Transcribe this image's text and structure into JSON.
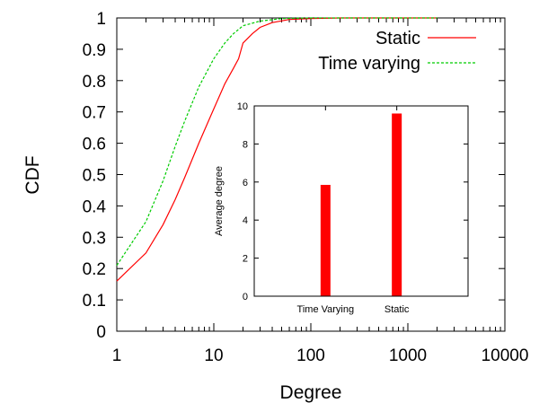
{
  "chart_data": [
    {
      "type": "line",
      "xlabel": "Degree",
      "ylabel": "CDF",
      "xscale": "log",
      "xlim": [
        1,
        10000
      ],
      "ylim": [
        0,
        1
      ],
      "xticks": [
        "1",
        "10",
        "100",
        "1000",
        "10000"
      ],
      "yticks": [
        "0",
        "0.1",
        "0.2",
        "0.3",
        "0.4",
        "0.5",
        "0.6",
        "0.7",
        "0.8",
        "0.9",
        "1"
      ],
      "legend_position": "top-right",
      "series": [
        {
          "name": "Static",
          "color": "#ff0000",
          "dash": "solid",
          "x": [
            1,
            2,
            3,
            4,
            5,
            7,
            10,
            13,
            16,
            18,
            20,
            25,
            30,
            40,
            60,
            100,
            200,
            1000,
            2000
          ],
          "y": [
            0.16,
            0.25,
            0.34,
            0.42,
            0.49,
            0.6,
            0.71,
            0.79,
            0.84,
            0.87,
            0.92,
            0.95,
            0.97,
            0.985,
            0.995,
            0.998,
            1.0,
            1.0,
            1.0
          ]
        },
        {
          "name": "Time varying",
          "color": "#00cc00",
          "dash": "dashed",
          "x": [
            1,
            2,
            3,
            4,
            5,
            7,
            10,
            13,
            16,
            20,
            30,
            50,
            100,
            200,
            1000,
            2000
          ],
          "y": [
            0.21,
            0.35,
            0.48,
            0.59,
            0.67,
            0.78,
            0.87,
            0.92,
            0.95,
            0.975,
            0.99,
            0.998,
            1.0,
            1.0,
            1.0,
            1.0
          ]
        }
      ]
    },
    {
      "type": "bar",
      "ylabel": "Average degree",
      "ylim": [
        0,
        10
      ],
      "yticks": [
        "0",
        "2",
        "4",
        "6",
        "8",
        "10"
      ],
      "categories": [
        "Time Varying",
        "Static"
      ],
      "values": [
        5.85,
        9.6
      ],
      "color": "#ff0000"
    }
  ]
}
